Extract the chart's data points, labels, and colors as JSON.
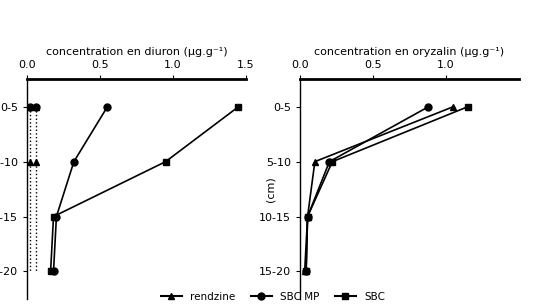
{
  "xlabel_left": "concentration en diuron (µg.g⁻¹)",
  "xlabel_right": "concentration en oryzalin (µg.g⁻¹)",
  "depth_labels": [
    "0-5",
    "5-10",
    "10-15",
    "15-20"
  ],
  "depth_values": [
    0,
    1,
    2,
    3
  ],
  "xlim_left": [
    0.0,
    1.5
  ],
  "xlim_right": [
    0.0,
    1.5
  ],
  "xticks_left": [
    0.0,
    0.5,
    1.0,
    1.5
  ],
  "xticks_right": [
    0.0,
    0.5,
    1.0
  ],
  "legend_labels": [
    "rendzine",
    "SBC MP",
    "SBC"
  ],
  "diuron": {
    "rendzine_dot1": [
      0.02,
      0.02,
      0.02,
      0.02
    ],
    "rendzine_dot2": [
      0.06,
      0.06,
      0.06,
      0.06
    ],
    "SBC_MP": [
      0.55,
      0.32,
      0.2,
      0.18
    ],
    "SBC": [
      1.45,
      0.95,
      0.18,
      0.16
    ]
  },
  "oryzalin": {
    "rendzine": [
      1.05,
      0.1,
      0.05,
      0.03
    ],
    "SBC_MP": [
      0.88,
      0.2,
      0.05,
      0.04
    ],
    "SBC": [
      1.15,
      0.22,
      0.05,
      0.04
    ]
  },
  "bg_color": "#ffffff",
  "line_color": "#000000"
}
